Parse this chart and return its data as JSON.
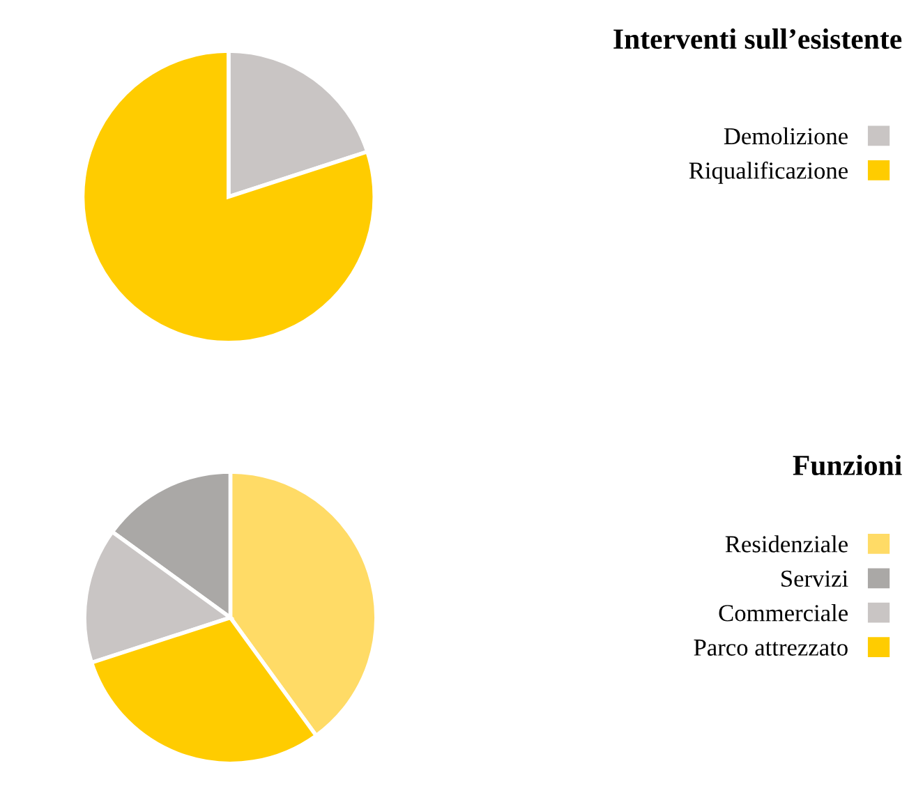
{
  "chart_data": [
    {
      "type": "pie",
      "title": "Interventi sull’esistente",
      "categories": [
        "Demolizione",
        "Riqualificazione"
      ],
      "values": [
        20,
        80
      ],
      "colors": [
        "#c9c5c4",
        "#ffcc00"
      ],
      "legend": "right"
    },
    {
      "type": "pie",
      "title": "Funzioni",
      "categories": [
        "Residenziale",
        "Servizi",
        "Commerciale",
        "Parco attrezzato"
      ],
      "values": [
        40,
        15,
        15,
        30
      ],
      "colors": [
        "#ffdb66",
        "#aaa8a6",
        "#c9c5c4",
        "#ffcc00"
      ],
      "legend": "right"
    }
  ]
}
